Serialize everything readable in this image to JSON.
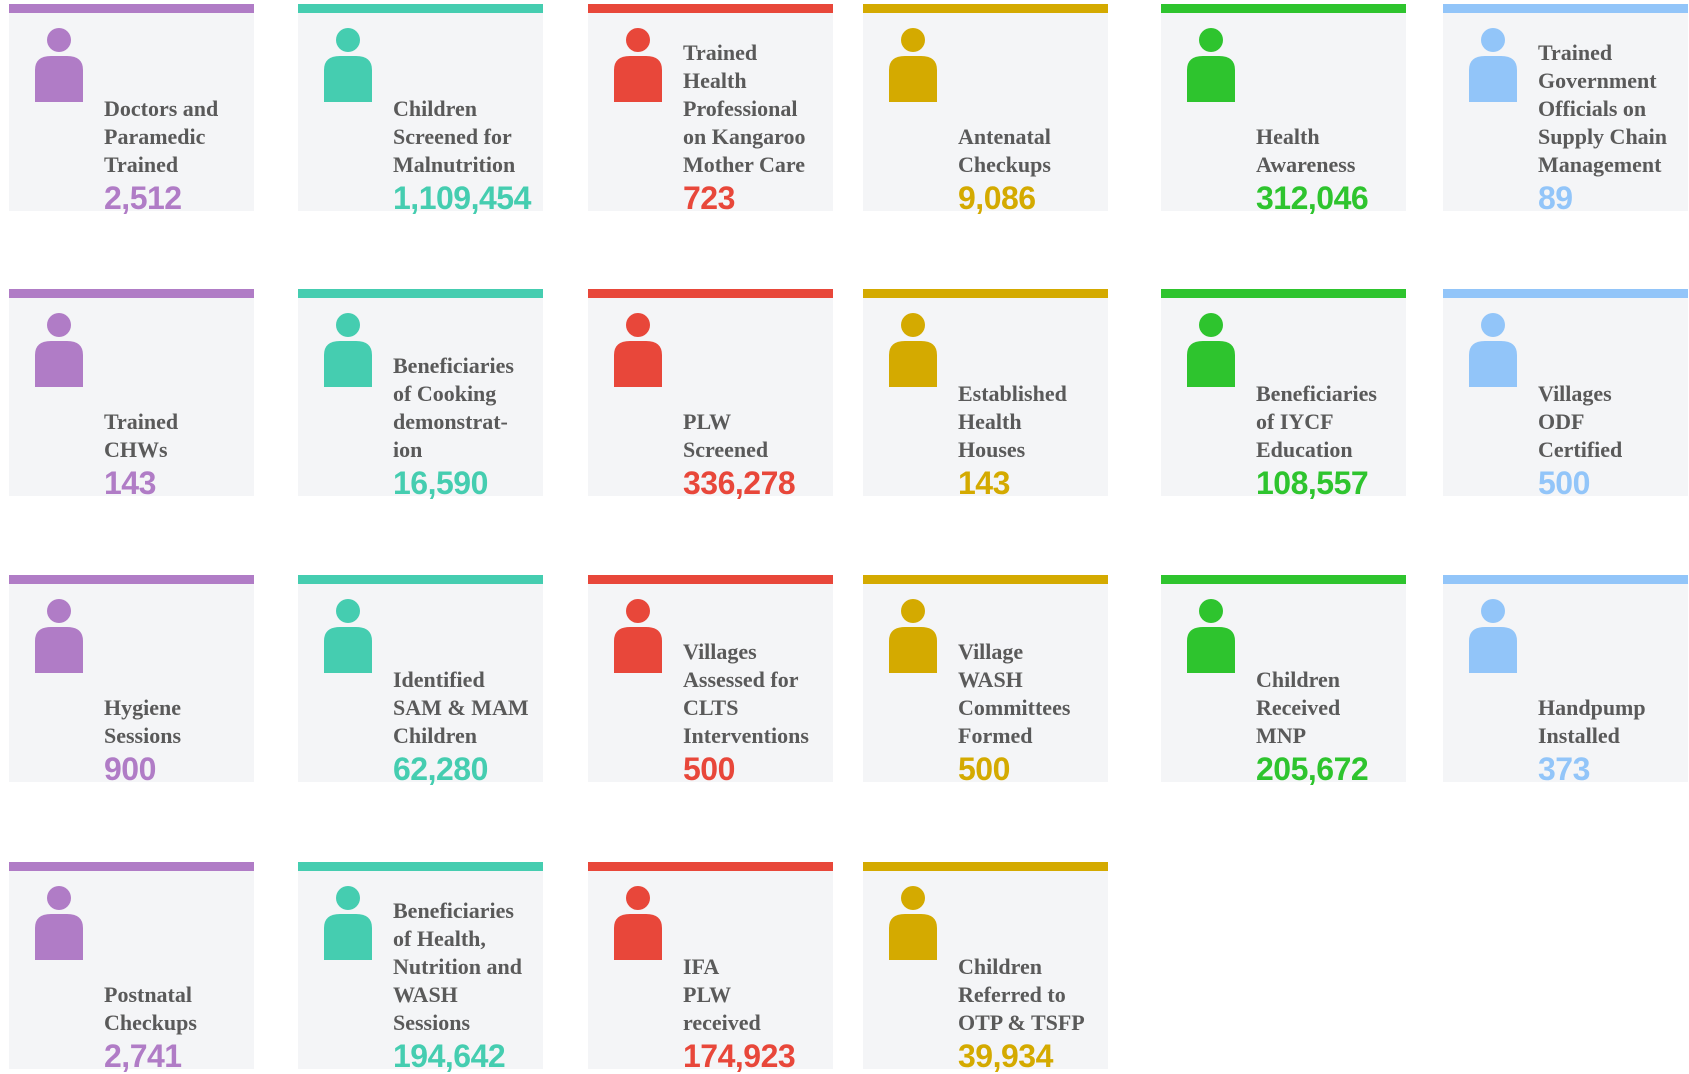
{
  "cards": [
    {
      "label": [
        "Doctors and",
        "Paramedic",
        "Trained"
      ],
      "value": "2,512",
      "color": "#b07cc6"
    },
    {
      "label": [
        "Children",
        "Screened for",
        "Malnutrition"
      ],
      "value": "1,109,454",
      "color": "#45cdb0"
    },
    {
      "label": [
        "Trained",
        "Health",
        "Professional",
        "on Kangaroo",
        "Mother Care"
      ],
      "value": "723",
      "color": "#e8473a"
    },
    {
      "label": [
        "Antenatal",
        "Checkups"
      ],
      "value": "9,086",
      "color": "#d4aa00"
    },
    {
      "label": [
        "Health",
        "Awareness"
      ],
      "value": "312,046",
      "color": "#2ec42e"
    },
    {
      "label": [
        "Trained",
        "Government",
        "Officials on",
        "Supply Chain",
        "Management"
      ],
      "value": "89",
      "color": "#92c5f9"
    },
    {
      "label": [
        "Trained",
        "CHWs"
      ],
      "value": "143",
      "color": "#b07cc6"
    },
    {
      "label": [
        "Beneficiaries",
        "of Cooking",
        "demonstrat-",
        "ion"
      ],
      "value": "16,590",
      "color": "#45cdb0"
    },
    {
      "label": [
        "PLW",
        "Screened"
      ],
      "value": "336,278",
      "color": "#e8473a"
    },
    {
      "label": [
        "Established",
        "Health",
        "Houses"
      ],
      "value": "143",
      "color": "#d4aa00"
    },
    {
      "label": [
        "Beneficiaries",
        "of IYCF",
        "Education"
      ],
      "value": "108,557",
      "color": "#2ec42e"
    },
    {
      "label": [
        "Villages",
        "ODF",
        "Certified"
      ],
      "value": "500",
      "color": "#92c5f9"
    },
    {
      "label": [
        "Hygiene",
        "Sessions"
      ],
      "value": "900",
      "color": "#b07cc6"
    },
    {
      "label": [
        "Identified",
        "SAM & MAM",
        "Children"
      ],
      "value": "62,280",
      "color": "#45cdb0"
    },
    {
      "label": [
        "Villages",
        "Assessed for",
        "CLTS",
        "Interventions"
      ],
      "value": "500",
      "color": "#e8473a"
    },
    {
      "label": [
        "Village",
        "WASH",
        "Committees",
        "Formed"
      ],
      "value": "500",
      "color": "#d4aa00"
    },
    {
      "label": [
        "Children",
        "Received",
        "MNP"
      ],
      "value": "205,672",
      "color": "#2ec42e"
    },
    {
      "label": [
        "Handpump",
        "Installed"
      ],
      "value": "373",
      "color": "#92c5f9"
    },
    {
      "label": [
        "Postnatal",
        "Checkups"
      ],
      "value": "2,741",
      "color": "#b07cc6"
    },
    {
      "label": [
        "Beneficiaries",
        "of Health,",
        "Nutrition and",
        "WASH",
        "Sessions"
      ],
      "value": "194,642",
      "color": "#45cdb0"
    },
    {
      "label": [
        "IFA",
        "PLW",
        "received"
      ],
      "value": "174,923",
      "color": "#e8473a"
    },
    {
      "label": [
        "Children",
        "Referred to",
        "OTP & TSFP"
      ],
      "value": "39,934",
      "color": "#d4aa00"
    }
  ]
}
